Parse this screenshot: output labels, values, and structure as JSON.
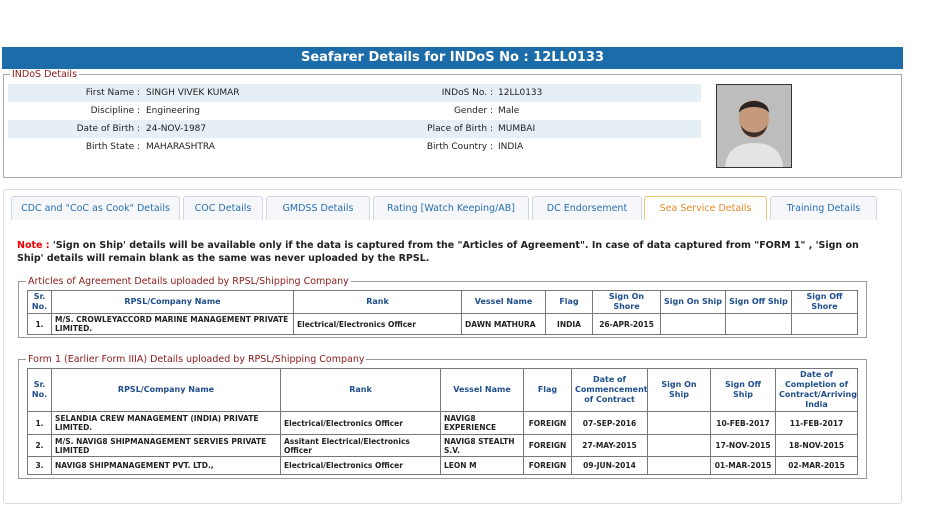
{
  "header": {
    "title": "Seafarer Details for INDoS No : 12LL0133"
  },
  "indos_details": {
    "legend": "INDoS Details",
    "fields": [
      {
        "label": "First Name :",
        "value": "SINGH VIVEK KUMAR"
      },
      {
        "label": "INDoS No. :",
        "value": "12LL0133"
      },
      {
        "label": "Discipline :",
        "value": "Engineering"
      },
      {
        "label": "Gender :",
        "value": "Male"
      },
      {
        "label": "Date of Birth :",
        "value": "24-NOV-1987"
      },
      {
        "label": "Place of Birth :",
        "value": "MUMBAI"
      },
      {
        "label": "Birth State :",
        "value": "MAHARASHTRA"
      },
      {
        "label": "Birth Country :",
        "value": "INDIA"
      }
    ]
  },
  "tabs": [
    "CDC and \"CoC as Cook\" Details",
    "COC Details",
    "GMDSS Details",
    "Rating [Watch Keeping/AB]",
    "DC Endorsement",
    "Sea Service Details",
    "Training Details"
  ],
  "active_tab": 5,
  "note": {
    "label": "Note :",
    "text": "'Sign on Ship' details will be available only if the data is captured from the \"Articles of Agreement\". In case of data captured from \"FORM 1\" , 'Sign on Ship' details will remain blank as the same was never uploaded by the RPSL."
  },
  "articles": {
    "legend": "Articles of Agreement Details uploaded by RPSL/Shipping Company",
    "columns": [
      "Sr. No.",
      "RPSL/Company Name",
      "Rank",
      "Vessel Name",
      "Flag",
      "Sign On Shore",
      "Sign On Ship",
      "Sign Off Ship",
      "Sign Off Shore"
    ],
    "rows": [
      [
        "1.",
        "M/S. CROWLEYACCORD MARINE MANAGEMENT PRIVATE LIMITED.",
        "Electrical/Electronics Officer",
        "DAWN MATHURA",
        "INDIA",
        "26-APR-2015",
        null,
        null,
        null
      ]
    ]
  },
  "form1": {
    "legend": "Form 1 (Earlier Form IIIA) Details uploaded by RPSL/Shipping Company",
    "columns": [
      "Sr. No.",
      "RPSL/Company Name",
      "Rank",
      "Vessel Name",
      "Flag",
      "Date of Commencement of Contract",
      "Sign On Ship",
      "Sign Off Ship",
      "Date of Completion of Contract/Arriving India"
    ],
    "rows": [
      [
        "1.",
        "SELANDIA CREW MANAGEMENT (INDIA) PRIVATE LIMITED.",
        "Electrical/Electronics Officer",
        "NAVIG8 EXPERIENCE",
        "FOREIGN",
        "07-SEP-2016",
        null,
        "10-FEB-2017",
        "11-FEB-2017"
      ],
      [
        "2.",
        "M/S. NAVIG8 SHIPMANAGEMENT SERVIES PRIVATE LIMITED",
        "Assitant Electrical/Electronics Officer",
        "NAVIG8 STEALTH S.V.",
        "FOREIGN",
        "27-MAY-2015",
        null,
        "17-NOV-2015",
        "18-NOV-2015"
      ],
      [
        "3.",
        "NAVIG8 SHIPMANAGEMENT PVT. LTD.,",
        "Electrical/Electronics Officer",
        "LEON M",
        "FOREIGN",
        "09-JUN-2014",
        null,
        "01-MAR-2015",
        "02-MAR-2015"
      ]
    ]
  }
}
